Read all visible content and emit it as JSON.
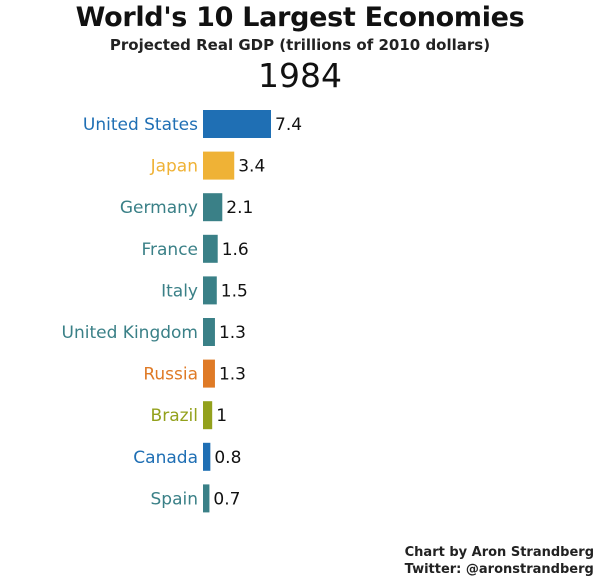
{
  "chart_data": {
    "type": "bar",
    "orientation": "horizontal",
    "title": "World's 10 Largest Economies",
    "subtitle": "Projected Real GDP (trillions of 2010 dollars)",
    "year": "1984",
    "categories": [
      "United States",
      "Japan",
      "Germany",
      "France",
      "Italy",
      "United Kingdom",
      "Russia",
      "Brazil",
      "Canada",
      "Spain"
    ],
    "values": [
      7.4,
      3.4,
      2.1,
      1.6,
      1.5,
      1.3,
      1.3,
      1,
      0.8,
      0.7
    ],
    "value_labels": [
      "7.4",
      "3.4",
      "2.1",
      "1.6",
      "1.5",
      "1.3",
      "1.3",
      "1",
      "0.8",
      "0.7"
    ],
    "colors": [
      "#1f6fb4",
      "#efb236",
      "#3a8087",
      "#3a8087",
      "#3a8087",
      "#3a8087",
      "#df7a26",
      "#93a11c",
      "#1f6fb4",
      "#3a8087"
    ],
    "label_colors": [
      "#1f6fb4",
      "#efb236",
      "#3a8087",
      "#3a8087",
      "#3a8087",
      "#3a8087",
      "#df7a26",
      "#93a11c",
      "#1f6fb4",
      "#3a8087"
    ],
    "xlim": [
      0,
      7.4
    ],
    "grid": false,
    "legend": "none"
  },
  "credit": {
    "line1": "Chart by Aron Strandberg",
    "line2": "Twitter: @aronstrandberg"
  }
}
